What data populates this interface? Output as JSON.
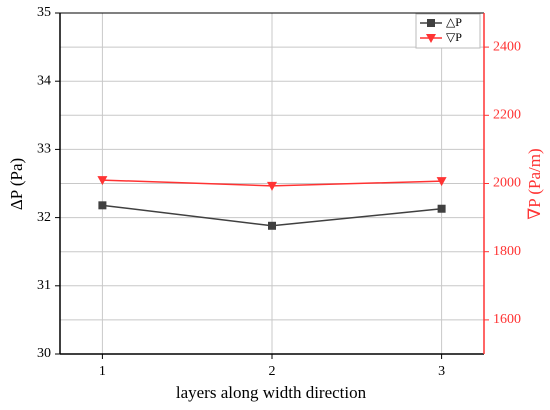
{
  "chart_data": {
    "type": "line",
    "x_label": "layers along width direction",
    "y_label": "ΔP (Pa)",
    "y2_label": "∇P (Pa/m)",
    "x": [
      1,
      2,
      3
    ],
    "xlim": [
      0.75,
      3.25
    ],
    "xticks": [
      1,
      2,
      3
    ],
    "ylim": [
      30,
      35
    ],
    "yticks": [
      30,
      31,
      32,
      33,
      34,
      35
    ],
    "y2lim": [
      1500,
      2500
    ],
    "y2ticks": [
      1600,
      1800,
      2000,
      2200,
      2400
    ],
    "grid": true,
    "legend": "upper right",
    "series": [
      {
        "name": "△P",
        "color": "#404040",
        "marker": "square",
        "values": [
          32.18,
          31.88,
          32.13
        ]
      },
      {
        "name": "▽P",
        "color": "#ff3333",
        "marker": "triangle-down",
        "axis": "y2",
        "values": [
          2010,
          1993,
          2007
        ]
      }
    ]
  }
}
